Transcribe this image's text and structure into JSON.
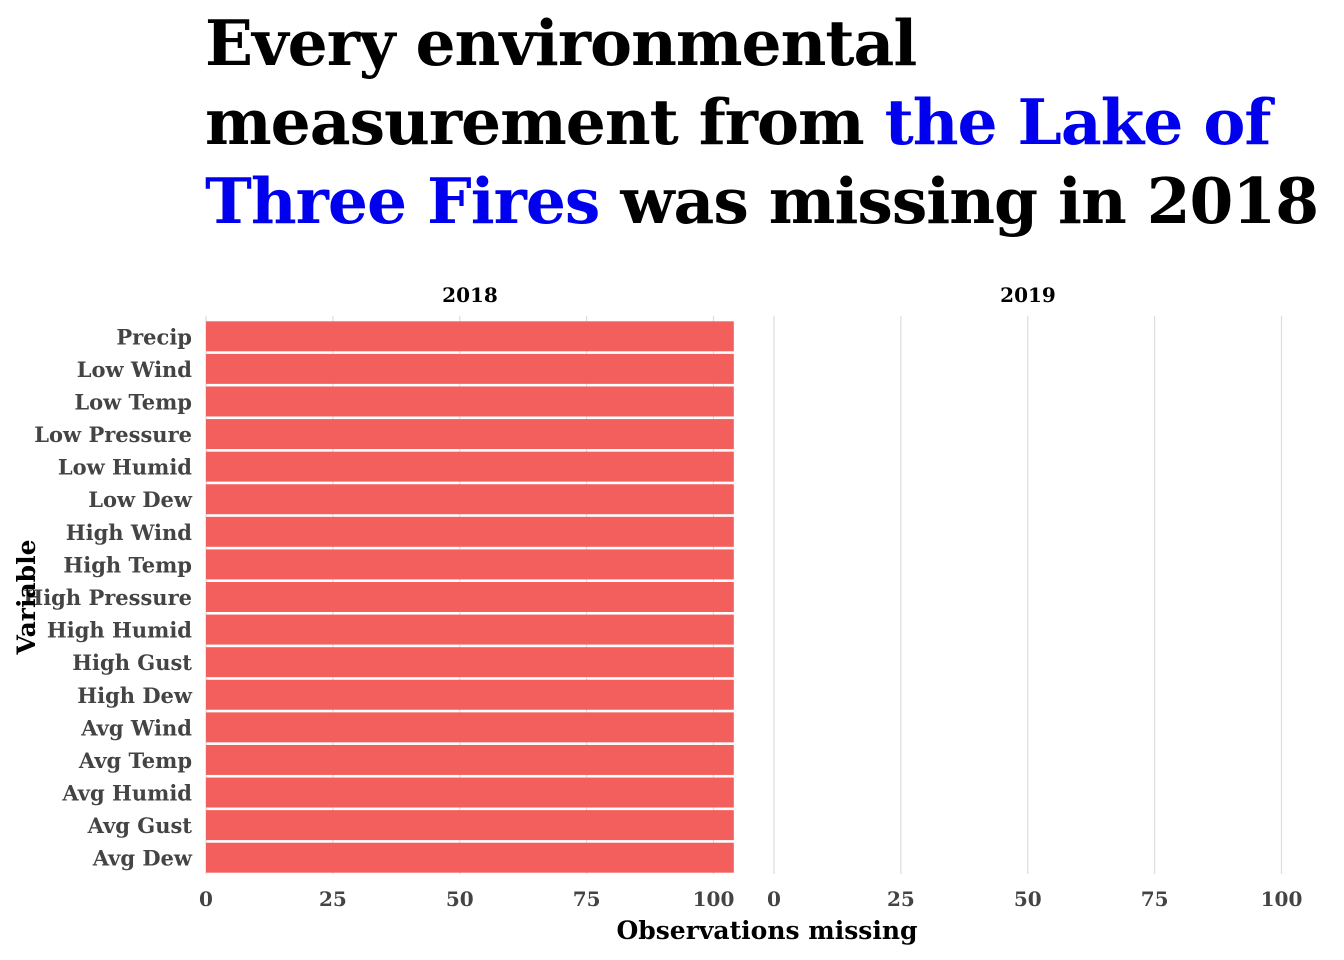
{
  "title": {
    "part1": "Every environmental measurement from ",
    "highlight": "the Lake of Three Fires",
    "part2": " was missing in 2018",
    "highlight_color": "#0000ee"
  },
  "chart_data": {
    "type": "bar",
    "orientation": "horizontal",
    "categories": [
      "Precip",
      "Low Wind",
      "Low Temp",
      "Low Pressure",
      "Low Humid",
      "Low Dew",
      "High Wind",
      "High Temp",
      "High Pressure",
      "High Humid",
      "High Gust",
      "High Dew",
      "Avg Wind",
      "Avg Temp",
      "Avg Humid",
      "Avg Gust",
      "Avg Dew"
    ],
    "facets": [
      {
        "label": "2018",
        "values": [
          104,
          104,
          104,
          104,
          104,
          104,
          104,
          104,
          104,
          104,
          104,
          104,
          104,
          104,
          104,
          104,
          104
        ]
      },
      {
        "label": "2019",
        "values": [
          0,
          0,
          0,
          0,
          0,
          0,
          0,
          0,
          0,
          0,
          0,
          0,
          0,
          0,
          0,
          0,
          0
        ]
      }
    ],
    "xlim": [
      0,
      104
    ],
    "xticks": [
      0,
      25,
      50,
      75,
      100
    ],
    "xlabel": "Observations missing",
    "ylabel": "Variable",
    "bar_color": "#f25f5c",
    "grid": "vertical"
  }
}
